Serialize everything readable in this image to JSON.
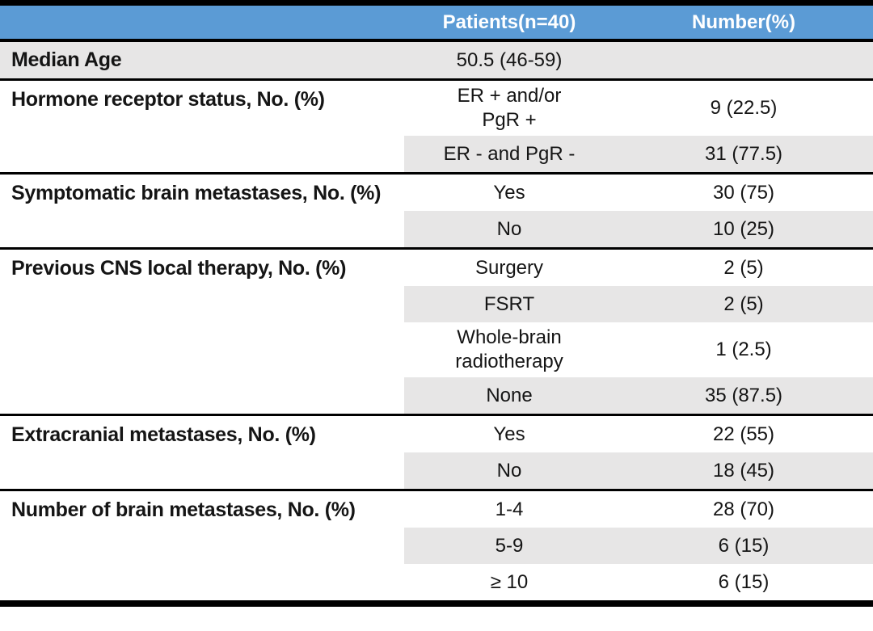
{
  "meta": {
    "title": "Patient characteristics table"
  },
  "colors": {
    "header_bg": "#5B9BD5",
    "header_text": "#FFFFFF",
    "row_shade": "#E7E6E6",
    "border": "#000000",
    "text": "#151515",
    "page_bg": "#FFFFFF"
  },
  "chart_data": {
    "type": "table",
    "title": "",
    "columns": [
      "",
      "Patients(n=40)",
      "Number(%)"
    ],
    "rows": [
      [
        "Median Age",
        "50.5 (46-59)",
        ""
      ],
      [
        "Hormone receptor status, No. (%)",
        "ER + and/or PgR +",
        "9 (22.5)"
      ],
      [
        "",
        "ER - and PgR -",
        "31 (77.5)"
      ],
      [
        "Symptomatic brain metastases, No. (%)",
        "Yes",
        "30 (75)"
      ],
      [
        "",
        "No",
        "10 (25)"
      ],
      [
        "Previous CNS local therapy, No. (%)",
        "Surgery",
        "2 (5)"
      ],
      [
        "",
        "FSRT",
        "2 (5)"
      ],
      [
        "",
        "Whole-brain radiotherapy",
        "1 (2.5)"
      ],
      [
        "",
        "None",
        "35 (87.5)"
      ],
      [
        "Extracranial metastases, No. (%)",
        "Yes",
        "22 (55)"
      ],
      [
        "",
        "No",
        "18 (45)"
      ],
      [
        "Number of brain metastases, No. (%)",
        "1-4",
        "28 (70)"
      ],
      [
        "",
        "5-9",
        "6 (15)"
      ],
      [
        "",
        "≥ 10",
        "6 (15)"
      ]
    ]
  },
  "table": {
    "columns": [
      {
        "label": ""
      },
      {
        "label": "Patients(n=40)"
      },
      {
        "label": "Number(%)"
      }
    ],
    "groups": [
      {
        "label": "Median Age",
        "shade_full_row": true,
        "rows": [
          {
            "patients": "50.5 (46-59)",
            "number": "",
            "shaded": false
          }
        ]
      },
      {
        "label": "Hormone receptor status, No. (%)",
        "shade_full_row": false,
        "rows": [
          {
            "patients": "ER + and/or\nPgR +",
            "number": "9 (22.5)",
            "shaded": false
          },
          {
            "patients": "ER - and PgR -",
            "number": "31 (77.5)",
            "shaded": true
          }
        ]
      },
      {
        "label": "Symptomatic brain metastases, No. (%)",
        "shade_full_row": false,
        "rows": [
          {
            "patients": "Yes",
            "number": "30 (75)",
            "shaded": false
          },
          {
            "patients": "No",
            "number": "10 (25)",
            "shaded": true
          }
        ]
      },
      {
        "label": "Previous CNS local therapy, No. (%)",
        "shade_full_row": false,
        "rows": [
          {
            "patients": "Surgery",
            "number": "2 (5)",
            "shaded": false
          },
          {
            "patients": "FSRT",
            "number": "2 (5)",
            "shaded": true
          },
          {
            "patients": "Whole-brain\nradiotherapy",
            "number": "1 (2.5)",
            "shaded": false
          },
          {
            "patients": "None",
            "number": "35 (87.5)",
            "shaded": true
          }
        ]
      },
      {
        "label": "Extracranial metastases, No. (%)",
        "shade_full_row": false,
        "rows": [
          {
            "patients": "Yes",
            "number": "22 (55)",
            "shaded": false
          },
          {
            "patients": "No",
            "number": "18 (45)",
            "shaded": true
          }
        ]
      },
      {
        "label": "Number of brain metastases, No. (%)",
        "shade_full_row": false,
        "rows": [
          {
            "patients": "1-4",
            "number": "28 (70)",
            "shaded": false
          },
          {
            "patients": "5-9",
            "number": "6 (15)",
            "shaded": true
          },
          {
            "patients": "≥ 10",
            "number": "6 (15)",
            "shaded": false
          }
        ]
      }
    ]
  }
}
